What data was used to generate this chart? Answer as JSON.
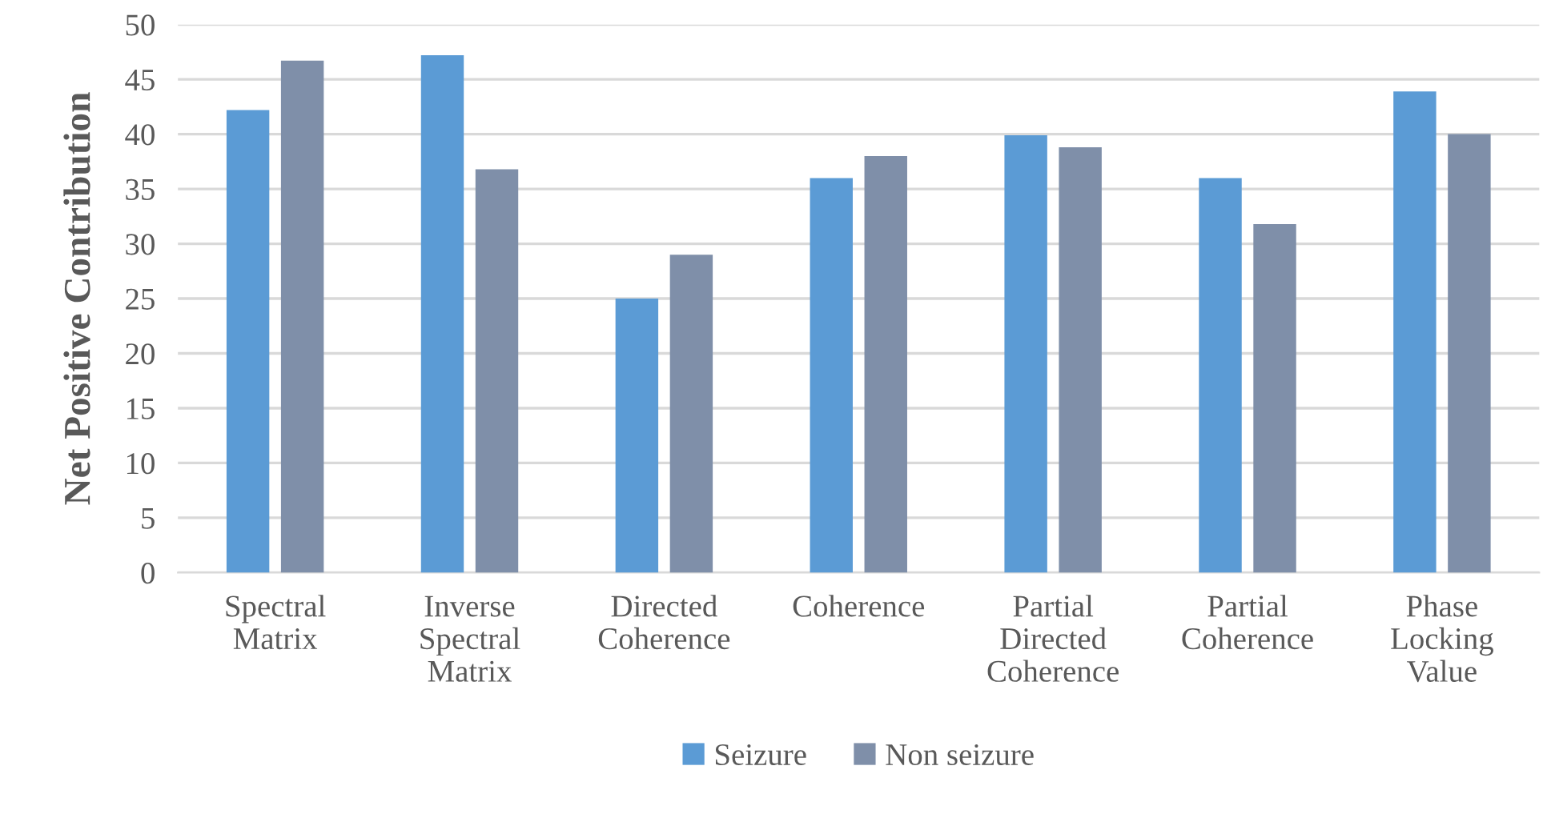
{
  "chart_data": {
    "type": "bar",
    "ylabel": "Net Positive Contribution",
    "categories": [
      "Spectral\nMatrix",
      "Inverse\nSpectral\nMatrix",
      "Directed\nCoherence",
      "Coherence",
      "Partial\nDirected\nCoherence",
      "Partial\nCoherence",
      "Phase\nLocking\nValue"
    ],
    "series": [
      {
        "name": "Seizure",
        "color": "#5b9bd5",
        "values": [
          42.2,
          47.2,
          25,
          36,
          39.9,
          36,
          43.9
        ]
      },
      {
        "name": "Non seizure",
        "color": "#7f8fa9",
        "values": [
          46.7,
          36.8,
          29,
          38,
          38.8,
          31.8,
          40
        ]
      }
    ],
    "ylim": [
      0,
      50
    ],
    "yticks": [
      0,
      5,
      10,
      15,
      20,
      25,
      30,
      35,
      40,
      45,
      50
    ],
    "grid": "y",
    "legend": "bottom"
  }
}
